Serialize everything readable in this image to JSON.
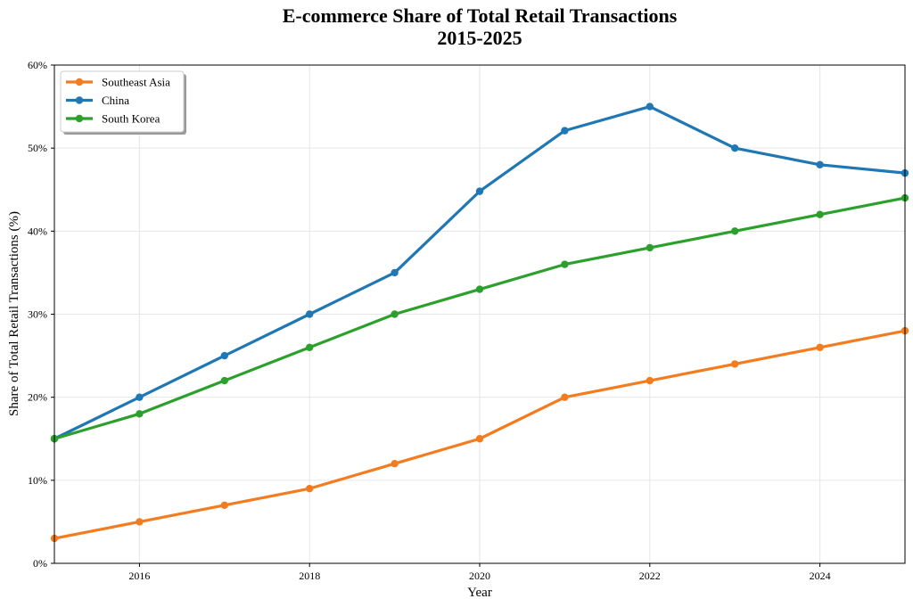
{
  "chart_data": {
    "type": "line",
    "title": "E-commerce Share of Total Retail Transactions",
    "subtitle": "2015-2025",
    "xlabel": "Year",
    "ylabel": "Share of Total Retail Transactions (%)",
    "xlim": [
      2015,
      2025
    ],
    "ylim": [
      0,
      60
    ],
    "x": [
      2015,
      2016,
      2017,
      2018,
      2019,
      2020,
      2021,
      2022,
      2023,
      2024,
      2025
    ],
    "x_ticks": [
      "2016",
      "2018",
      "2020",
      "2022",
      "2024"
    ],
    "y_ticks": [
      "0%",
      "10%",
      "20%",
      "30%",
      "40%",
      "50%",
      "60%"
    ],
    "grid": true,
    "legend_position": "top-left",
    "series": [
      {
        "name": "Southeast Asia",
        "color": "#f47c20",
        "values": [
          3,
          5,
          7,
          9,
          12,
          15,
          20,
          22,
          24,
          26,
          28
        ]
      },
      {
        "name": "China",
        "color": "#1f77b4",
        "values": [
          15,
          20,
          25,
          30,
          35,
          44.8,
          52.1,
          55,
          50,
          48,
          47
        ]
      },
      {
        "name": "South Korea",
        "color": "#2ca02c",
        "values": [
          15,
          18,
          22,
          26,
          30,
          33,
          36,
          38,
          40,
          42,
          44
        ]
      }
    ]
  }
}
